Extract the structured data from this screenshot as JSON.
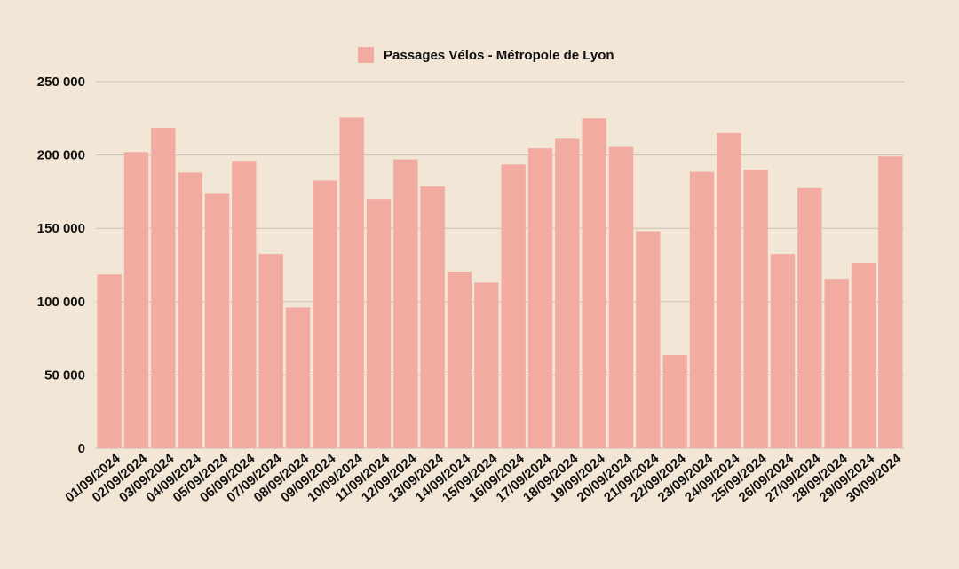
{
  "chart_data": {
    "type": "bar",
    "title": "",
    "xlabel": "",
    "ylabel": "",
    "ylim": [
      0,
      250000
    ],
    "yticks": [
      0,
      50000,
      100000,
      150000,
      200000,
      250000
    ],
    "ytick_labels": [
      "0",
      "50 000",
      "100 000",
      "150 000",
      "200 000",
      "250 000"
    ],
    "grid": true,
    "legend_position": "top-center",
    "bar_color": "#f2aba1",
    "categories": [
      "01/09/2024",
      "02/09/2024",
      "03/09/2024",
      "04/09/2024",
      "05/09/2024",
      "06/09/2024",
      "07/09/2024",
      "08/09/2024",
      "09/09/2024",
      "10/09/2024",
      "11/09/2024",
      "12/09/2024",
      "13/09/2024",
      "14/09/2024",
      "15/09/2024",
      "16/09/2024",
      "17/09/2024",
      "18/09/2024",
      "19/09/2024",
      "20/09/2024",
      "21/09/2024",
      "22/09/2024",
      "23/09/2024",
      "24/09/2024",
      "25/09/2024",
      "26/09/2024",
      "27/09/2024",
      "28/09/2024",
      "29/09/2024",
      "30/09/2024"
    ],
    "series": [
      {
        "name": "Passages Vélos - Métropole de Lyon",
        "values": [
          118500,
          202000,
          218500,
          188000,
          174000,
          196000,
          132500,
          96000,
          182500,
          225500,
          170000,
          197000,
          178500,
          120500,
          113000,
          193500,
          204500,
          211000,
          225000,
          205500,
          148000,
          63500,
          188500,
          215000,
          190000,
          132500,
          177500,
          115500,
          126500,
          199000
        ]
      }
    ]
  }
}
